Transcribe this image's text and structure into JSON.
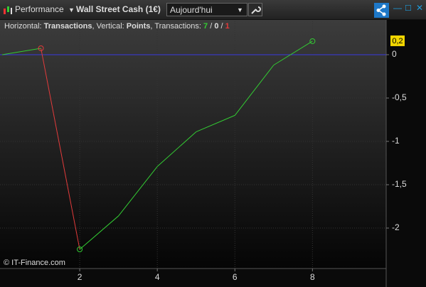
{
  "toolbar": {
    "indicator": "Performance",
    "instrument": "Wall Street Cash (1€)",
    "period": "Aujourd'hui"
  },
  "chart_data": {
    "type": "line",
    "info": {
      "h_prefix": "Horizontal: ",
      "xlabel": "Transactions",
      "v_prefix": ", Vertical: ",
      "ylabel": "Points",
      "t_prefix": ", Transactions: ",
      "wins": 7,
      "sep": " / ",
      "neutral": 0,
      "losses": 1
    },
    "x": [
      0,
      1,
      2,
      3,
      4,
      5,
      6,
      7,
      8
    ],
    "y": [
      0,
      0.074,
      -2.246,
      -1.86,
      -1.29,
      -0.89,
      -0.7,
      -0.12,
      0.156
    ],
    "up_color": "#33cc33",
    "down_color": "#e23b3b",
    "zero_color": "#3a3adf",
    "current_label": "0,2",
    "xlim": [
      0,
      9.9
    ],
    "ylim": [
      -2.467,
      0.385
    ],
    "xticks": [
      2,
      4,
      6,
      8
    ],
    "yticks": [
      {
        "value": -2,
        "label": "-2"
      },
      {
        "value": -1.5,
        "label": "-1,5"
      },
      {
        "value": -1,
        "label": "-1"
      },
      {
        "value": -0.5,
        "label": "-0,5"
      },
      0
    ],
    "grid": true
  },
  "footer": "© IT-Finance.com"
}
